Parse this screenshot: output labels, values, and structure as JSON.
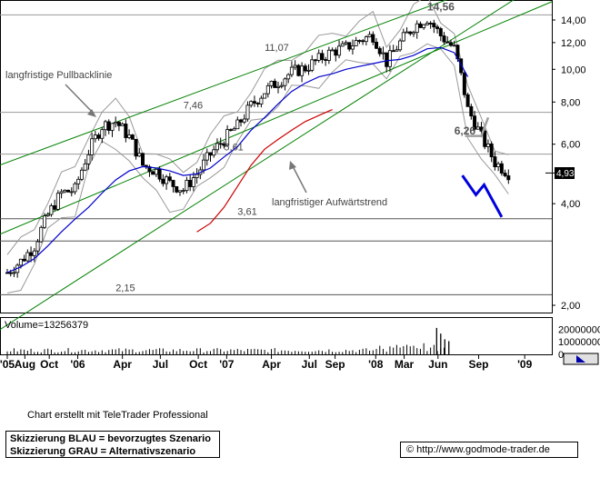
{
  "chart_data": {
    "type": "line",
    "price_axis": {
      "scale": "log",
      "ticks": [
        "14,00",
        "12,00",
        "10,00",
        "8,00",
        "6,00",
        "4,00",
        "2,00"
      ],
      "tick_values": [
        14,
        12,
        10,
        8,
        6,
        4,
        2
      ]
    },
    "volume_axis": {
      "ticks": [
        "20000000",
        "10000000",
        "0"
      ],
      "tick_values": [
        20000000,
        10000000,
        0
      ]
    },
    "x_ticks": [
      {
        "label": "'05",
        "i": 0
      },
      {
        "label": "Aug",
        "i": 1.3
      },
      {
        "label": "Oct",
        "i": 3.1
      },
      {
        "label": "'06",
        "i": 5.2
      },
      {
        "label": "Apr",
        "i": 8.5
      },
      {
        "label": "Jul",
        "i": 11.3
      },
      {
        "label": "Oct",
        "i": 14.1
      },
      {
        "label": "'07",
        "i": 16.2
      },
      {
        "label": "Apr",
        "i": 19.5
      },
      {
        "label": "Jul",
        "i": 22.3
      },
      {
        "label": "Sep",
        "i": 24.2
      },
      {
        "label": "'08",
        "i": 27.2
      },
      {
        "label": "Mar",
        "i": 29.3
      },
      {
        "label": "Jun",
        "i": 31.8
      },
      {
        "label": "Sep",
        "i": 34.8
      },
      {
        "label": "'09",
        "i": 38.2
      }
    ],
    "price_close": [
      2.5,
      2.7,
      3.0,
      3.7,
      4.3,
      4.4,
      5.7,
      6.8,
      7.0,
      6.3,
      5.2,
      5.0,
      4.6,
      4.4,
      4.9,
      5.6,
      6.2,
      6.8,
      7.8,
      8.6,
      9.2,
      9.8,
      10.1,
      10.7,
      11.3,
      11.6,
      12.2,
      12.6,
      10.5,
      12.0,
      13.4,
      14.2,
      12.6,
      11.5,
      7.6,
      6.3,
      5.3,
      4.93
    ],
    "sma_200": [
      null,
      null,
      null,
      null,
      null,
      null,
      null,
      null,
      null,
      null,
      null,
      null,
      null,
      null,
      3.3,
      3.5,
      3.9,
      4.5,
      5.2,
      5.8,
      6.2,
      6.6,
      7.0,
      7.3,
      7.6
    ],
    "sma_38": [
      2.5,
      2.6,
      2.75,
      3.0,
      3.3,
      3.6,
      3.9,
      4.3,
      4.7,
      5.0,
      5.15,
      5.1,
      5.0,
      4.85,
      4.9,
      5.1,
      5.5,
      5.9,
      6.6,
      7.2,
      7.9,
      8.6,
      9.1,
      9.5,
      9.7,
      10.0,
      10.2,
      10.4,
      10.6,
      10.7,
      11.0,
      11.5,
      11.6,
      11.2,
      9.5
    ],
    "levels": [
      {
        "value": 14.56,
        "label": "14,56",
        "i": 31
      },
      {
        "value": 11.07,
        "label": "11,07",
        "i": 19
      },
      {
        "value": 7.46,
        "label": "7,46",
        "i": 13
      },
      {
        "value": 6.26,
        "label": "6,26",
        "i": 33
      },
      {
        "value": 5.61,
        "label": "5,61",
        "i": 16
      },
      {
        "value": 3.61,
        "label": "3,61",
        "i": 17
      },
      {
        "value": 2.15,
        "label": "2,15",
        "i": 8
      }
    ],
    "horizontal_lines": [
      14.5,
      7.46,
      5.61,
      3.61,
      3.1,
      2.15
    ],
    "current_value": "4,93",
    "current_price": 4.93,
    "annotations": {
      "pullback": "langfristige Pullbacklinie",
      "uptrend": "langfristiger Aufwärtstrend"
    },
    "volume_label": "Volume=13256379",
    "volume_spikes": [
      {
        "i": 31.7,
        "v": 21000000
      },
      {
        "i": 32.0,
        "v": 16500000
      },
      {
        "i": 32.3,
        "v": 12000000
      },
      {
        "i": 32.6,
        "v": 10500000
      }
    ],
    "scenario_blue": [
      [
        33.6,
        4.85
      ],
      [
        34.6,
        4.25
      ],
      [
        35.2,
        4.55
      ],
      [
        36.5,
        3.65
      ]
    ],
    "scenario_grey": [
      [
        33.8,
        6.35
      ],
      [
        35.0,
        6.35
      ],
      [
        35.5,
        7.2
      ]
    ]
  },
  "footer": {
    "credit": "Chart erstellt mit TeleTrader Professional",
    "legend_blue": "Skizzierung BLAU = bevorzugtes Szenario",
    "legend_grey": "Skizzierung GRAU = Alternativszenario",
    "url_symbol": "©",
    "url": "http://www.godmode-trader.de"
  },
  "colors": {
    "candles": "#000000",
    "sma_200": "#cc0000",
    "sma_38": "#0000cc",
    "trendlines": "#008000",
    "bollinger": "#999999",
    "scenario_blue": "#0000dd",
    "scenario_grey": "#a0a0a0"
  }
}
